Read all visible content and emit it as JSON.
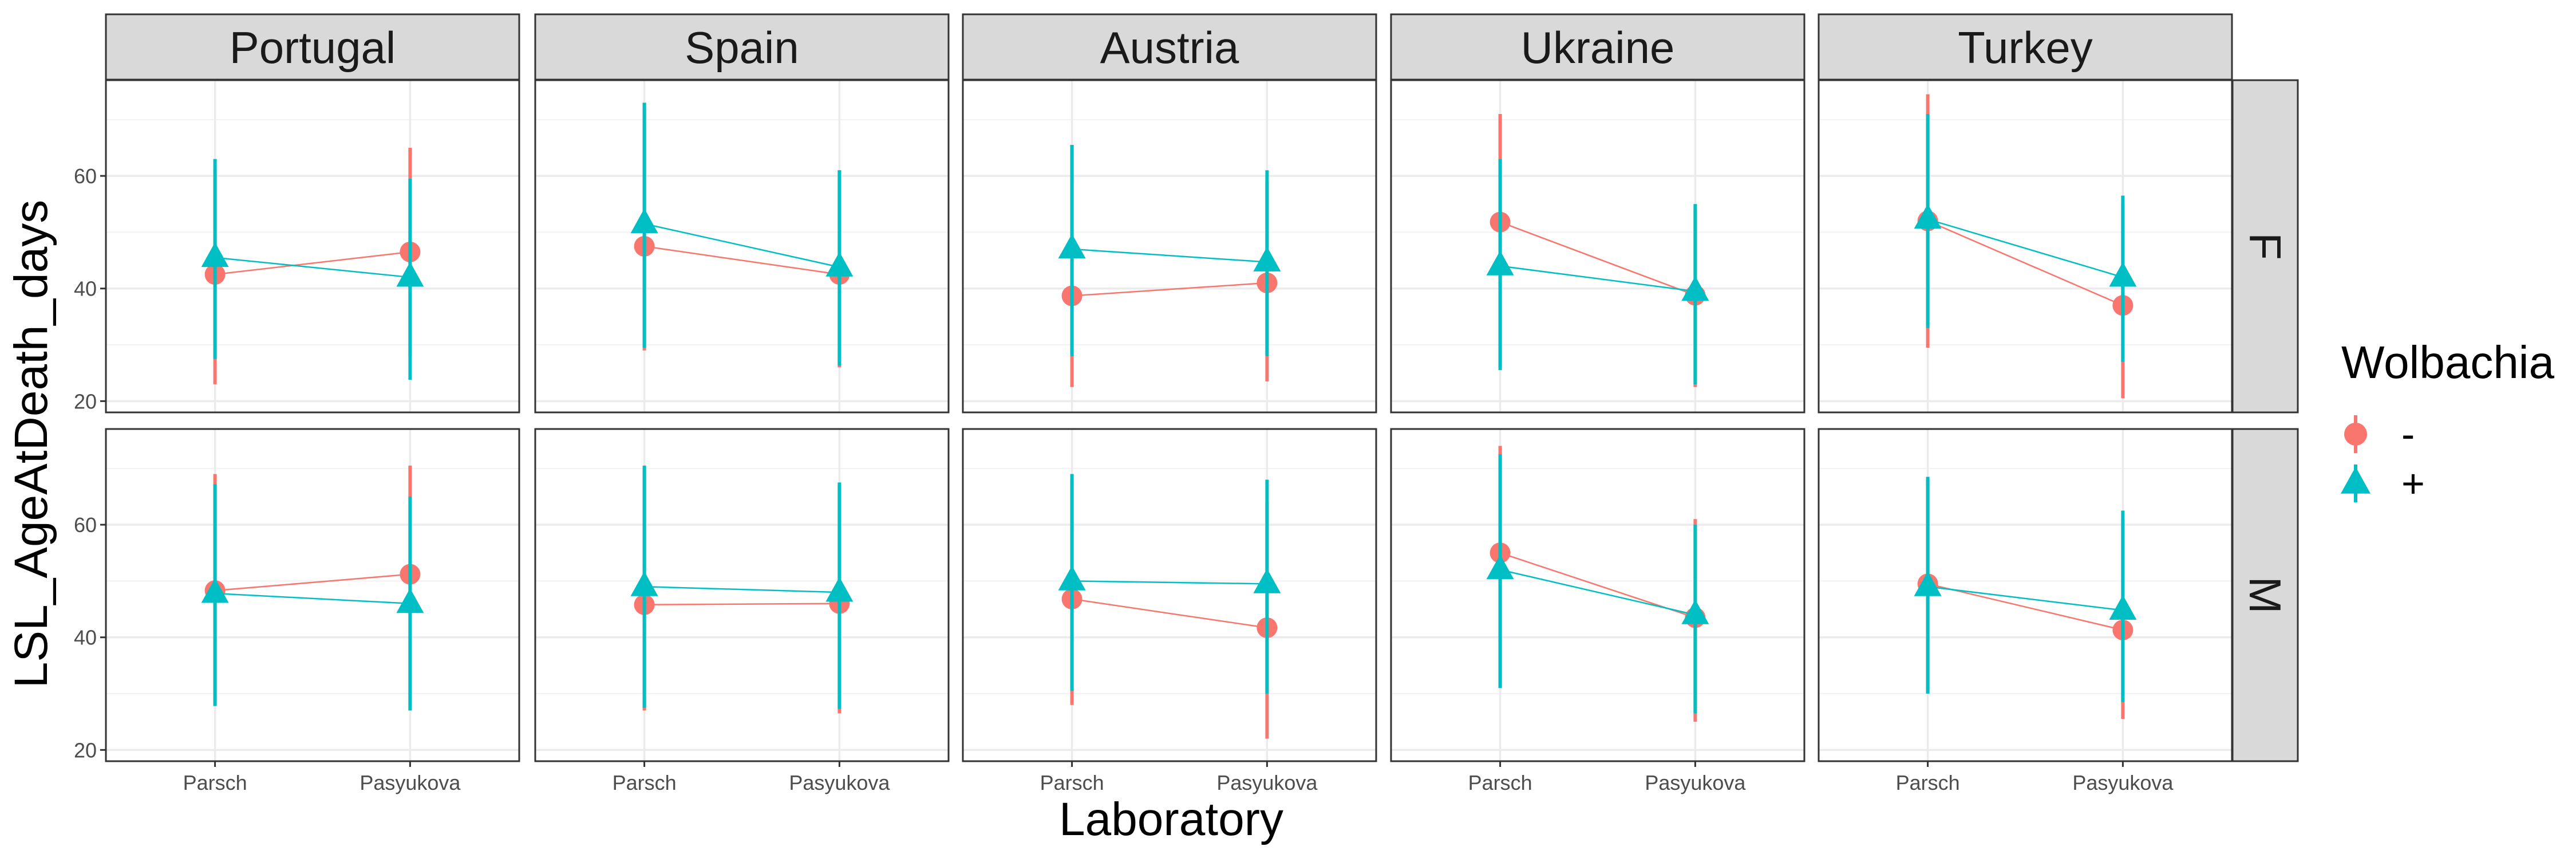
{
  "chart_data": {
    "type": "scatter",
    "facet_cols": [
      "Portugal",
      "Spain",
      "Austria",
      "Ukraine",
      "Turkey"
    ],
    "facet_rows": [
      "F",
      "M"
    ],
    "categories": [
      "Parsch",
      "Pasyukova"
    ],
    "xlabel": "Laboratory",
    "ylabel": "LSL_AgeAtDeath_days",
    "ylim": [
      18,
      77
    ],
    "yticks": [
      20,
      40,
      60
    ],
    "grid": true,
    "legend": {
      "title": "Wolbachia",
      "position": "right",
      "entries": [
        {
          "label": "-",
          "shape": "circle",
          "color": "#F8766D"
        },
        {
          "label": "+",
          "shape": "triangle",
          "color": "#00BFC4"
        }
      ]
    },
    "series": [
      {
        "name": "-",
        "color": "#F8766D",
        "shape": "circle",
        "panels": {
          "F": {
            "Portugal": {
              "values": [
                42.5,
                46.5
              ],
              "lo": [
                23,
                28
              ],
              "hi": [
                61,
                65
              ]
            },
            "Spain": {
              "values": [
                47.5,
                42.5
              ],
              "lo": [
                29,
                26
              ],
              "hi": [
                73,
                61
              ]
            },
            "Austria": {
              "values": [
                38.7,
                41.0
              ],
              "lo": [
                22.5,
                23.5
              ],
              "hi": [
                65.5,
                59
              ]
            },
            "Ukraine": {
              "values": [
                51.8,
                38.8
              ],
              "lo": [
                26,
                22.5
              ],
              "hi": [
                71,
                54
              ]
            },
            "Turkey": {
              "values": [
                52.0,
                37.0
              ],
              "lo": [
                29.5,
                20.5
              ],
              "hi": [
                74.5,
                55
              ]
            }
          },
          "M": {
            "Portugal": {
              "values": [
                48.3,
                51.2
              ],
              "lo": [
                28,
                27
              ],
              "hi": [
                69,
                70.5
              ]
            },
            "Spain": {
              "values": [
                45.8,
                46.0
              ],
              "lo": [
                27,
                26.5
              ],
              "hi": [
                70,
                67
              ]
            },
            "Austria": {
              "values": [
                46.8,
                41.7
              ],
              "lo": [
                28,
                22
              ],
              "hi": [
                68,
                64
              ]
            },
            "Ukraine": {
              "values": [
                55.0,
                43.5
              ],
              "lo": [
                31,
                25
              ],
              "hi": [
                74,
                61
              ]
            },
            "Turkey": {
              "values": [
                49.5,
                41.3
              ],
              "lo": [
                30,
                25.5
              ],
              "hi": [
                68,
                61
              ]
            }
          }
        }
      },
      {
        "name": "+",
        "color": "#00BFC4",
        "shape": "triangle",
        "panels": {
          "F": {
            "Portugal": {
              "values": [
                45.5,
                42.0
              ],
              "lo": [
                27.5,
                23.8
              ],
              "hi": [
                63,
                59.5
              ]
            },
            "Spain": {
              "values": [
                51.5,
                43.8
              ],
              "lo": [
                29.5,
                26.3
              ],
              "hi": [
                73,
                61
              ]
            },
            "Austria": {
              "values": [
                47.0,
                44.7
              ],
              "lo": [
                28,
                28
              ],
              "hi": [
                65.5,
                61
              ]
            },
            "Ukraine": {
              "values": [
                44.0,
                39.5
              ],
              "lo": [
                25.5,
                23
              ],
              "hi": [
                63,
                55
              ]
            },
            "Turkey": {
              "values": [
                52.3,
                42.0
              ],
              "lo": [
                33,
                27
              ],
              "hi": [
                71,
                56.5
              ]
            }
          },
          "M": {
            "Portugal": {
              "values": [
                47.8,
                46.0
              ],
              "lo": [
                27.8,
                27
              ],
              "hi": [
                67.2,
                65
              ]
            },
            "Spain": {
              "values": [
                49.0,
                48.0
              ],
              "lo": [
                27.5,
                27.3
              ],
              "hi": [
                70.5,
                67.5
              ]
            },
            "Austria": {
              "values": [
                50.0,
                49.5
              ],
              "lo": [
                30.5,
                30
              ],
              "hi": [
                69,
                68
              ]
            },
            "Ukraine": {
              "values": [
                52.0,
                44.0
              ],
              "lo": [
                31,
                26.5
              ],
              "hi": [
                72.5,
                60
              ]
            },
            "Turkey": {
              "values": [
                49.0,
                44.8
              ],
              "lo": [
                30,
                28.5
              ],
              "hi": [
                68.5,
                62.5
              ]
            }
          }
        }
      }
    ]
  }
}
